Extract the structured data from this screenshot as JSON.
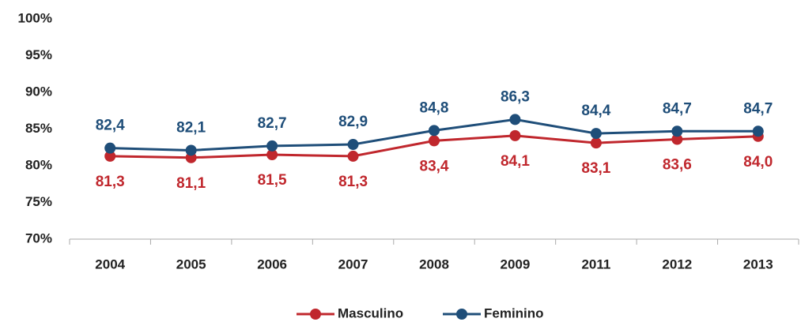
{
  "chart_data": {
    "type": "line",
    "categories": [
      "2004",
      "2005",
      "2006",
      "2007",
      "2008",
      "2009",
      "2011",
      "2012",
      "2013"
    ],
    "series": [
      {
        "name": "Masculino",
        "color": "#c0272d",
        "values": [
          81.3,
          81.1,
          81.5,
          81.3,
          83.4,
          84.1,
          83.1,
          83.6,
          84.0
        ],
        "value_labels": [
          "81,3",
          "81,1",
          "81,5",
          "81,3",
          "83,4",
          "84,1",
          "83,1",
          "83,6",
          "84,0"
        ]
      },
      {
        "name": "Feminino",
        "color": "#1f4e79",
        "values": [
          82.4,
          82.1,
          82.7,
          82.9,
          84.8,
          86.3,
          84.4,
          84.7,
          84.7
        ],
        "value_labels": [
          "82,4",
          "82,1",
          "82,7",
          "82,9",
          "84,8",
          "86,3",
          "84,4",
          "84,7",
          "84,7"
        ]
      }
    ],
    "ylim": [
      70,
      100
    ],
    "yticks": [
      {
        "value": 70,
        "label": "70%"
      },
      {
        "value": 75,
        "label": "75%"
      },
      {
        "value": 80,
        "label": "80%"
      },
      {
        "value": 85,
        "label": "85%"
      },
      {
        "value": 90,
        "label": "90%"
      },
      {
        "value": 95,
        "label": "95%"
      },
      {
        "value": 100,
        "label": "100%"
      }
    ],
    "legend": "bottom"
  }
}
